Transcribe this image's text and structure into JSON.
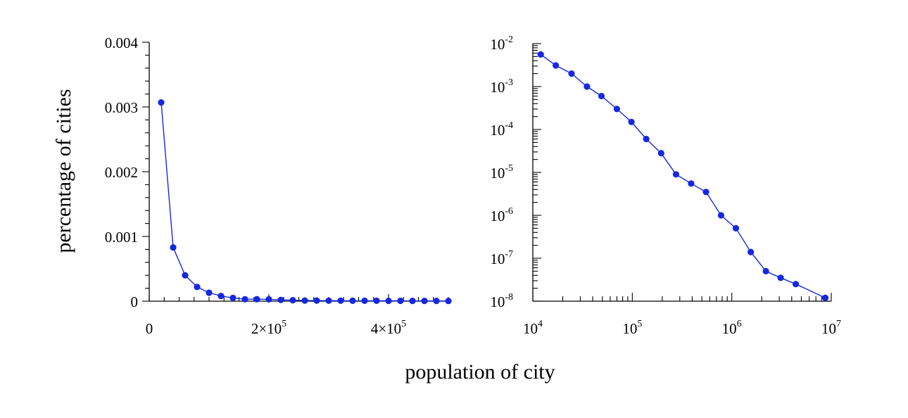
{
  "colors": {
    "series": "#1528e0",
    "axis": "#000000"
  },
  "shared": {
    "xlabel": "population of city",
    "ylabel": "percentage of cities"
  },
  "chart_data": [
    {
      "type": "line",
      "markers": true,
      "xscale": "linear",
      "yscale": "linear",
      "xlim": [
        0,
        500000
      ],
      "ylim": [
        0,
        0.004
      ],
      "xticks": [
        {
          "value": 0,
          "label": "0"
        },
        {
          "value": 200000,
          "label": "2×10",
          "sup": "5"
        },
        {
          "value": 400000,
          "label": "4×10",
          "sup": "5"
        }
      ],
      "yticks": [
        {
          "value": 0,
          "label": "0"
        },
        {
          "value": 0.001,
          "label": "0.001"
        },
        {
          "value": 0.002,
          "label": "0.002"
        },
        {
          "value": 0.003,
          "label": "0.003"
        },
        {
          "value": 0.004,
          "label": "0.004"
        }
      ],
      "series": [
        {
          "x": [
            20000,
            40000,
            60000,
            80000,
            100000,
            120000,
            140000,
            160000,
            180000,
            200000,
            220000,
            240000,
            260000,
            280000,
            300000,
            320000,
            340000,
            360000,
            380000,
            400000,
            420000,
            440000,
            460000,
            480000,
            500000
          ],
          "y": [
            0.00307,
            0.00083,
            0.0004,
            0.00022,
            0.00013,
            8e-05,
            5e-05,
            3e-05,
            3e-05,
            2.8e-05,
            2e-05,
            1.5e-05,
            1e-05,
            1e-05,
            8e-06,
            8e-06,
            7e-06,
            6e-06,
            6e-06,
            5e-06,
            5e-06,
            4e-06,
            4e-06,
            4e-06,
            3e-06
          ]
        }
      ]
    },
    {
      "type": "line",
      "markers": true,
      "xscale": "log",
      "yscale": "log",
      "xlim": [
        10000,
        10000000
      ],
      "ylim": [
        1e-08,
        0.01
      ],
      "xticks": [
        {
          "value": 10000,
          "label": "10",
          "sup": "4"
        },
        {
          "value": 100000,
          "label": "10",
          "sup": "5"
        },
        {
          "value": 1000000,
          "label": "10",
          "sup": "6"
        },
        {
          "value": 10000000,
          "label": "10",
          "sup": "7"
        }
      ],
      "yticks": [
        {
          "value": 1e-08,
          "label": "10",
          "sup": "-8"
        },
        {
          "value": 1e-07,
          "label": "10",
          "sup": "-7"
        },
        {
          "value": 1e-06,
          "label": "10",
          "sup": "-6"
        },
        {
          "value": 1e-05,
          "label": "10",
          "sup": "-5"
        },
        {
          "value": 0.0001,
          "label": "10",
          "sup": "-4"
        },
        {
          "value": 0.001,
          "label": "10",
          "sup": "-3"
        },
        {
          "value": 0.01,
          "label": "10",
          "sup": "-2"
        }
      ],
      "series": [
        {
          "x": [
            12000,
            17000,
            24500,
            35000,
            49000,
            70000,
            98000,
            138000,
            195000,
            275000,
            390000,
            550000,
            780000,
            1100000,
            1550000,
            2200000,
            3100000,
            4400000,
            8700000
          ],
          "y": [
            0.0056,
            0.0031,
            0.002,
            0.001,
            0.0006,
            0.0003,
            0.00015,
            6e-05,
            2.8e-05,
            9e-06,
            5.5e-06,
            3.5e-06,
            1e-06,
            5e-07,
            1.4e-07,
            5e-08,
            3.5e-08,
            2.5e-08,
            1.2e-08
          ]
        }
      ]
    }
  ]
}
